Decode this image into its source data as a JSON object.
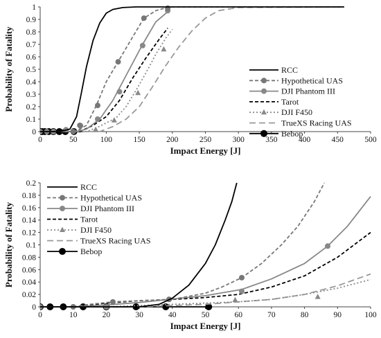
{
  "chart_data": [
    {
      "type": "line",
      "xlabel": "Impact Energy [J]",
      "ylabel": "Probability of Fatality",
      "xlim": [
        0,
        500
      ],
      "ylim": [
        0,
        1
      ],
      "x_ticks": [
        "0",
        "50",
        "100",
        "150",
        "200",
        "250",
        "300",
        "350",
        "400",
        "450",
        "500"
      ],
      "y_ticks": [
        "0",
        "0.1",
        "0.2",
        "0.3",
        "0.4",
        "0.5",
        "0.6",
        "0.7",
        "0.8",
        "0.9",
        "1"
      ],
      "legend": "right",
      "series": [
        {
          "name": "RCC",
          "color": "#000000",
          "dash": "",
          "marker": "",
          "curve": [
            [
              0,
              0
            ],
            [
              30,
              0
            ],
            [
              45,
              0.02
            ],
            [
              55,
              0.12
            ],
            [
              62,
              0.3
            ],
            [
              70,
              0.52
            ],
            [
              80,
              0.73
            ],
            [
              90,
              0.87
            ],
            [
              100,
              0.95
            ],
            [
              110,
              0.98
            ],
            [
              125,
              0.995
            ],
            [
              145,
              1
            ],
            [
              460,
              1
            ]
          ],
          "markers": []
        },
        {
          "name": "Hypothetical UAS",
          "color": "#777777",
          "dash": "5,3",
          "marker": "circle",
          "curve": [
            [
              0,
              0
            ],
            [
              50,
              0
            ],
            [
              60,
              0.02
            ],
            [
              70,
              0.05
            ],
            [
              85,
              0.21
            ],
            [
              100,
              0.4
            ],
            [
              120,
              0.58
            ],
            [
              140,
              0.76
            ],
            [
              157,
              0.91
            ],
            [
              175,
              0.97
            ],
            [
              195,
              1
            ],
            [
              460,
              1
            ]
          ],
          "markers": [
            [
              50,
              0
            ],
            [
              60,
              0.05
            ],
            [
              87,
              0.21
            ],
            [
              118,
              0.56
            ],
            [
              157,
              0.91
            ],
            [
              193,
              0.99
            ]
          ]
        },
        {
          "name": "DJI Phantom III",
          "color": "#888888",
          "dash": "",
          "marker": "circle",
          "curve": [
            [
              0,
              0
            ],
            [
              55,
              0
            ],
            [
              70,
              0.02
            ],
            [
              90,
              0.1
            ],
            [
              110,
              0.25
            ],
            [
              130,
              0.45
            ],
            [
              155,
              0.7
            ],
            [
              175,
              0.88
            ],
            [
              195,
              0.97
            ]
          ],
          "markers": [
            [
              0,
              0
            ],
            [
              10,
              0
            ],
            [
              20,
              0
            ],
            [
              39,
              0.015
            ],
            [
              61,
              0.047
            ],
            [
              87,
              0.1
            ],
            [
              120,
              0.32
            ],
            [
              155,
              0.69
            ],
            [
              193,
              0.97
            ]
          ]
        },
        {
          "name": "Tarot",
          "color": "#000000",
          "dash": "5,3",
          "marker": "",
          "curve": [
            [
              0,
              0
            ],
            [
              60,
              0
            ],
            [
              80,
              0.05
            ],
            [
              100,
              0.12
            ],
            [
              120,
              0.25
            ],
            [
              140,
              0.43
            ],
            [
              160,
              0.59
            ],
            [
              180,
              0.74
            ],
            [
              193,
              0.83
            ]
          ],
          "markers": []
        },
        {
          "name": "DJI F450",
          "color": "#888888",
          "dash": "2,3",
          "marker": "triangle",
          "curve": [
            [
              0,
              0
            ],
            [
              70,
              0
            ],
            [
              85,
              0.03
            ],
            [
              100,
              0.07
            ],
            [
              115,
              0.11
            ],
            [
              130,
              0.2
            ],
            [
              145,
              0.33
            ],
            [
              160,
              0.47
            ],
            [
              175,
              0.62
            ],
            [
              190,
              0.75
            ],
            [
              200,
              0.82
            ]
          ],
          "markers": [
            [
              20,
              0
            ],
            [
              60,
              0.01
            ],
            [
              84,
              0.016
            ],
            [
              112,
              0.09
            ],
            [
              148,
              0.31
            ],
            [
              187,
              0.66
            ]
          ]
        },
        {
          "name": "TrueXS Racing UAS",
          "color": "#999999",
          "dash": "9,5",
          "marker": "",
          "curve": [
            [
              0,
              0
            ],
            [
              90,
              0
            ],
            [
              110,
              0.04
            ],
            [
              130,
              0.1
            ],
            [
              150,
              0.2
            ],
            [
              170,
              0.36
            ],
            [
              190,
              0.53
            ],
            [
              210,
              0.68
            ],
            [
              230,
              0.81
            ],
            [
              250,
              0.91
            ],
            [
              270,
              0.97
            ],
            [
              300,
              0.995
            ],
            [
              460,
              1
            ]
          ],
          "markers": []
        },
        {
          "name": "Bebop",
          "color": "#000000",
          "dash": "",
          "marker": "bigcircle",
          "curve": [
            [
              0,
              0
            ],
            [
              52,
              0
            ]
          ],
          "markers": [
            [
              0,
              0
            ],
            [
              3,
              0
            ],
            [
              7,
              0
            ],
            [
              13,
              0
            ],
            [
              20,
              0
            ],
            [
              29,
              0
            ],
            [
              38,
              0
            ],
            [
              51,
              0
            ]
          ]
        }
      ]
    },
    {
      "type": "line",
      "xlabel": "Impact Energy [J]",
      "ylabel": "Probability of Fatality",
      "xlim": [
        0,
        100
      ],
      "ylim": [
        0,
        0.2
      ],
      "x_ticks": [
        "0",
        "10",
        "20",
        "30",
        "40",
        "50",
        "60",
        "70",
        "80",
        "90",
        "100"
      ],
      "y_ticks": [
        "0",
        "0.02",
        "0.04",
        "0.06",
        "0.08",
        "0.1",
        "0.12",
        "0.14",
        "0.16",
        "0.18",
        "0.2"
      ],
      "legend": "top-left",
      "series": [
        {
          "name": "RCC",
          "color": "#000000",
          "dash": "",
          "marker": "",
          "curve": [
            [
              0,
              0
            ],
            [
              30,
              0
            ],
            [
              36,
              0.004
            ],
            [
              40,
              0.014
            ],
            [
              45,
              0.035
            ],
            [
              50,
              0.07
            ],
            [
              53,
              0.1
            ],
            [
              56,
              0.14
            ],
            [
              58,
              0.17
            ],
            [
              59.5,
              0.2
            ]
          ],
          "markers": []
        },
        {
          "name": "Hypothetical UAS",
          "color": "#777777",
          "dash": "5,3",
          "marker": "circle",
          "curve": [
            [
              0,
              0
            ],
            [
              10,
              0
            ],
            [
              15,
              0.004
            ],
            [
              22,
              0.008
            ],
            [
              30,
              0.01
            ],
            [
              40,
              0.012
            ],
            [
              50,
              0.022
            ],
            [
              55,
              0.032
            ],
            [
              61,
              0.047
            ],
            [
              67,
              0.07
            ],
            [
              73,
              0.1
            ],
            [
              78,
              0.13
            ],
            [
              83,
              0.17
            ],
            [
              86,
              0.2
            ]
          ],
          "markers": [
            [
              10,
              0
            ],
            [
              22,
              0.008
            ],
            [
              39,
              0.012
            ],
            [
              61,
              0.047
            ]
          ]
        },
        {
          "name": "DJI Phantom III",
          "color": "#888888",
          "dash": "",
          "marker": "circle",
          "curve": [
            [
              0,
              0
            ],
            [
              10,
              0
            ],
            [
              20,
              0.003
            ],
            [
              30,
              0.007
            ],
            [
              39,
              0.012
            ],
            [
              50,
              0.018
            ],
            [
              61,
              0.028
            ],
            [
              70,
              0.045
            ],
            [
              80,
              0.07
            ],
            [
              87,
              0.098
            ],
            [
              93,
              0.13
            ],
            [
              100,
              0.178
            ]
          ],
          "markers": [
            [
              0,
              0
            ],
            [
              10,
              0
            ],
            [
              20,
              0
            ],
            [
              39,
              0.012
            ],
            [
              61,
              0.025
            ],
            [
              87,
              0.098
            ]
          ]
        },
        {
          "name": "Tarot",
          "color": "#000000",
          "dash": "5,3",
          "marker": "",
          "curve": [
            [
              0,
              0
            ],
            [
              10,
              0
            ],
            [
              20,
              0.006
            ],
            [
              30,
              0.01
            ],
            [
              40,
              0.012
            ],
            [
              50,
              0.015
            ],
            [
              60,
              0.02
            ],
            [
              70,
              0.032
            ],
            [
              80,
              0.05
            ],
            [
              90,
              0.08
            ],
            [
              100,
              0.12
            ]
          ],
          "markers": []
        },
        {
          "name": "DJI F450",
          "color": "#888888",
          "dash": "2,3",
          "marker": "triangle",
          "curve": [
            [
              0,
              0
            ],
            [
              20,
              0
            ],
            [
              30,
              0.002
            ],
            [
              40,
              0.004
            ],
            [
              50,
              0.006
            ],
            [
              60,
              0.008
            ],
            [
              70,
              0.012
            ],
            [
              80,
              0.02
            ],
            [
              90,
              0.03
            ],
            [
              100,
              0.044
            ]
          ],
          "markers": [
            [
              20,
              0
            ],
            [
              59,
              0.011
            ],
            [
              84,
              0.016
            ]
          ]
        },
        {
          "name": "TrueXS Racing UAS",
          "color": "#999999",
          "dash": "9,5",
          "marker": "",
          "curve": [
            [
              0,
              0
            ],
            [
              30,
              0
            ],
            [
              50,
              0.004
            ],
            [
              60,
              0.008
            ],
            [
              70,
              0.012
            ],
            [
              80,
              0.02
            ],
            [
              90,
              0.034
            ],
            [
              100,
              0.053
            ]
          ],
          "markers": []
        },
        {
          "name": "Bebop",
          "color": "#000000",
          "dash": "",
          "marker": "bigcircle",
          "curve": [
            [
              0,
              0
            ],
            [
              52,
              0
            ]
          ],
          "markers": [
            [
              0,
              0
            ],
            [
              3,
              0
            ],
            [
              7,
              0
            ],
            [
              13,
              0
            ],
            [
              20,
              0
            ],
            [
              29,
              0
            ],
            [
              38,
              0
            ],
            [
              51,
              0
            ]
          ]
        }
      ]
    }
  ]
}
